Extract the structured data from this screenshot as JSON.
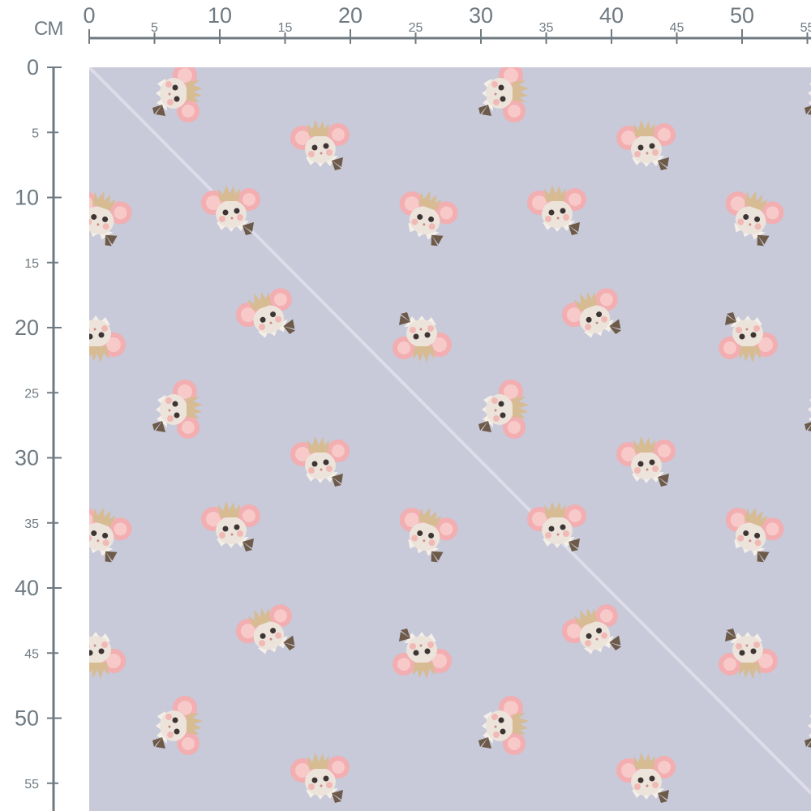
{
  "ruler": {
    "unit": "CM",
    "top_labels": [
      "0",
      "5",
      "10",
      "15",
      "20",
      "25",
      "30",
      "35",
      "40",
      "45",
      "50",
      "55"
    ],
    "left_labels": [
      "0",
      "5",
      "10",
      "15",
      "20",
      "25",
      "30",
      "35",
      "40",
      "45",
      "50",
      "55"
    ],
    "color": "#6f7a82"
  },
  "fabric": {
    "background": "#c8c9d9",
    "motif": "crowned-mouse-icon",
    "fold_line": true
  }
}
